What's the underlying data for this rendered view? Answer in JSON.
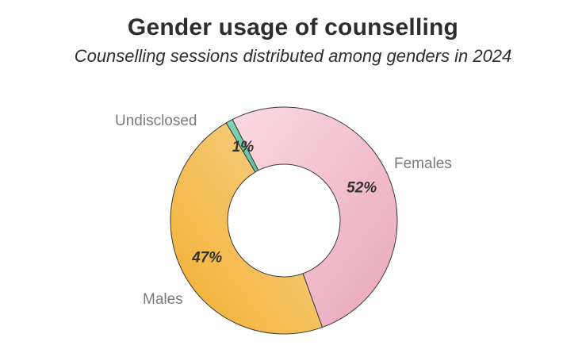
{
  "chart_data": {
    "type": "pie",
    "style": "donut",
    "title": "Gender usage of counselling",
    "subtitle": "Counselling sessions distributed among genders in 2024",
    "slices": [
      {
        "category": "Females",
        "value": 52,
        "label": "52%",
        "color_light": "#fbd9e3",
        "color_dark": "#e9a6b9"
      },
      {
        "category": "Males",
        "value": 47,
        "label": "47%",
        "color_light": "#f6d493",
        "color_dark": "#f3ae2c"
      },
      {
        "category": "Undisclosed",
        "value": 1,
        "label": "1%",
        "color_light": "#7fd5b6",
        "color_dark": "#5cc29c"
      }
    ]
  }
}
